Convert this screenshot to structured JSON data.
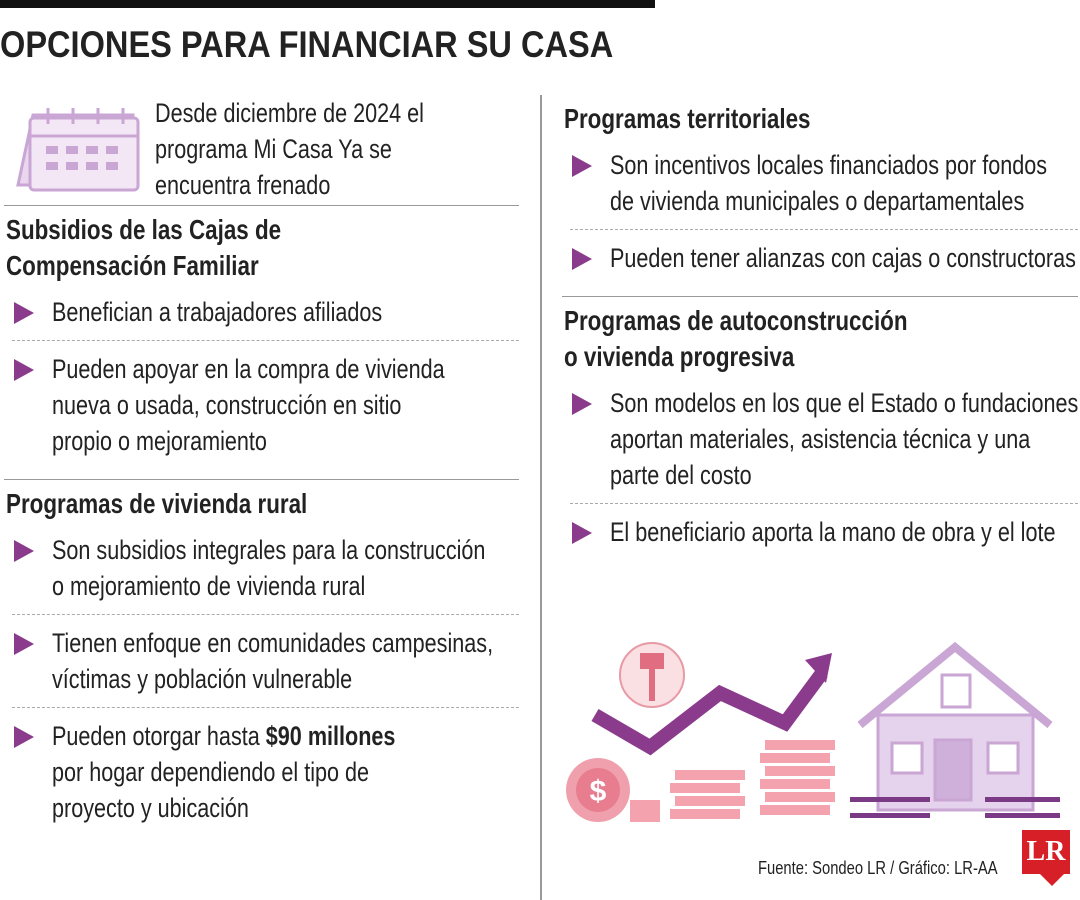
{
  "title": "OPCIONES PARA FINANCIAR SU CASA",
  "intro": {
    "lines": [
      "Desde diciembre de 2024 el",
      "programa Mi Casa Ya se",
      "encuentra frenado"
    ]
  },
  "left": [
    {
      "title": [
        "Subsidios de las Cajas de",
        "Compensación Familiar"
      ],
      "bullets": [
        {
          "lines": [
            "Benefician a trabajadores afiliados"
          ]
        },
        {
          "lines": [
            "Pueden apoyar en la compra de vivienda",
            "nueva o usada, construcción en sitio",
            "propio o mejoramiento"
          ]
        }
      ]
    },
    {
      "title": [
        "Programas de vivienda rural"
      ],
      "bullets": [
        {
          "lines": [
            "Son subsidios integrales para la construcción",
            "o mejoramiento de vivienda rural"
          ]
        },
        {
          "lines": [
            "Tienen enfoque en comunidades campesinas,",
            "víctimas y población vulnerable"
          ]
        },
        {
          "lines": [
            {
              "text": "Pueden otorgar hasta",
              "bold": "$90 millones"
            },
            "por hogar dependiendo el tipo de",
            "proyecto y ubicación"
          ]
        }
      ]
    }
  ],
  "right": [
    {
      "title": [
        "Programas territoriales"
      ],
      "bullets": [
        {
          "lines": [
            "Son incentivos locales financiados por fondos",
            "de vivienda municipales o departamentales"
          ]
        },
        {
          "lines": [
            "Pueden tener alianzas con cajas o constructoras"
          ]
        }
      ]
    },
    {
      "title": [
        "Programas de autoconstrucción",
        "o vivienda progresiva"
      ],
      "bullets": [
        {
          "lines": [
            "Son modelos en los que el Estado o fundaciones",
            "aportan materiales, asistencia técnica y una",
            "parte del costo"
          ]
        },
        {
          "lines": [
            "El beneficiario aporta la mano de obra y el lote"
          ]
        }
      ]
    }
  ],
  "source": "Fuente: Sondeo LR / Gráfico: LR-AA",
  "logo": "LR"
}
